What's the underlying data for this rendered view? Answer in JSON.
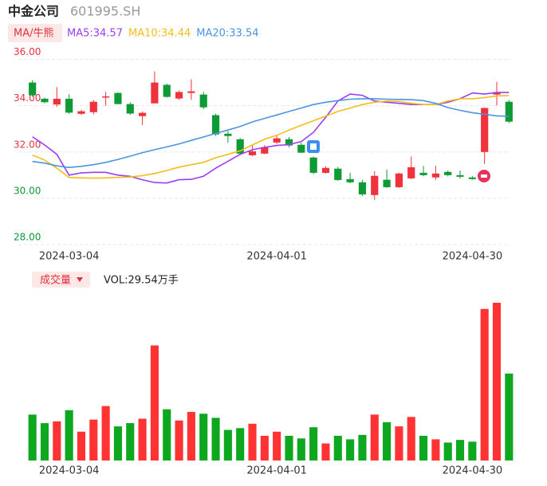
{
  "header": {
    "name": "中金公司",
    "code": "601995.SH"
  },
  "chart_data": [
    {
      "type": "candlestick",
      "legend_title": "MA/牛熊",
      "categories": [
        null,
        null,
        null,
        "2024-03-04",
        null,
        null,
        null,
        null,
        null,
        null,
        null,
        null,
        null,
        null,
        null,
        null,
        null,
        null,
        null,
        null,
        "2024-04-01",
        null,
        null,
        null,
        null,
        null,
        null,
        null,
        null,
        null,
        null,
        null,
        null,
        null,
        null,
        null,
        "2024-04-30",
        null,
        null,
        null
      ],
      "open": [
        35.0,
        34.3,
        34.05,
        34.3,
        33.65,
        33.72,
        34.35,
        34.55,
        34.07,
        33.55,
        34.1,
        34.9,
        34.31,
        34.55,
        34.48,
        33.59,
        32.79,
        32.55,
        31.86,
        31.93,
        32.41,
        32.55,
        32.31,
        31.76,
        31.1,
        31.28,
        30.83,
        30.69,
        30.14,
        30.8,
        30.48,
        30.86,
        31.1,
        30.9,
        31.14,
        31.0,
        30.9,
        32.0,
        34.48,
        34.17
      ],
      "close": [
        34.45,
        34.15,
        34.3,
        33.7,
        33.76,
        34.17,
        34.4,
        34.07,
        33.66,
        33.69,
        35.0,
        34.38,
        34.59,
        34.62,
        33.93,
        32.76,
        32.69,
        31.93,
        32.03,
        32.21,
        32.59,
        32.28,
        31.97,
        31.1,
        31.31,
        30.79,
        30.69,
        30.17,
        30.97,
        30.48,
        31.07,
        31.34,
        31.0,
        31.07,
        31.0,
        30.93,
        30.83,
        33.9,
        34.59,
        33.31
      ],
      "high": [
        35.1,
        34.35,
        34.8,
        34.5,
        33.82,
        34.25,
        34.6,
        34.58,
        34.15,
        33.75,
        35.48,
        34.95,
        34.65,
        35.14,
        34.6,
        33.65,
        32.9,
        32.6,
        32.3,
        32.3,
        32.7,
        32.65,
        32.4,
        31.8,
        31.38,
        31.35,
        31.1,
        30.8,
        31.17,
        31.24,
        31.1,
        31.8,
        31.4,
        31.4,
        31.2,
        31.2,
        30.95,
        33.92,
        35.03,
        34.25
      ],
      "low": [
        34.38,
        34.1,
        33.95,
        33.65,
        33.6,
        33.62,
        34.0,
        34.05,
        33.6,
        33.17,
        34.1,
        34.35,
        34.25,
        34.25,
        33.85,
        32.7,
        32.4,
        31.9,
        31.82,
        31.9,
        32.35,
        32.2,
        31.95,
        31.05,
        31.07,
        30.75,
        30.65,
        30.1,
        29.93,
        30.45,
        30.45,
        30.83,
        30.95,
        30.8,
        30.95,
        30.85,
        30.8,
        31.48,
        34.0,
        33.25
      ],
      "up_color": "#f0323c",
      "down_color": "#0e9b35",
      "series": [
        {
          "name": "MA5:34.57",
          "color": "#9b3df2",
          "values": [
            32.66,
            32.3,
            31.9,
            31.0,
            31.1,
            31.12,
            31.12,
            31.0,
            30.95,
            30.8,
            30.68,
            30.66,
            30.8,
            30.82,
            30.95,
            31.3,
            31.6,
            31.9,
            32.1,
            32.2,
            32.28,
            32.32,
            32.45,
            32.85,
            33.5,
            34.2,
            34.5,
            34.45,
            34.2,
            34.15,
            34.1,
            34.05,
            34.05,
            34.05,
            34.15,
            34.3,
            34.55,
            34.5,
            34.57,
            34.57
          ]
        },
        {
          "name": "MA10:34.44",
          "color": "#f5bd1a",
          "values": [
            31.86,
            31.65,
            31.3,
            30.9,
            30.88,
            30.87,
            30.88,
            30.9,
            30.92,
            30.98,
            31.07,
            31.2,
            31.35,
            31.45,
            31.55,
            31.75,
            31.9,
            32.05,
            32.3,
            32.55,
            32.72,
            32.95,
            33.15,
            33.35,
            33.55,
            33.75,
            33.9,
            34.05,
            34.15,
            34.2,
            34.18,
            34.1,
            34.05,
            34.05,
            34.2,
            34.3,
            34.3,
            34.35,
            34.42,
            34.44
          ]
        },
        {
          "name": "MA20:33.54",
          "color": "#4a94e0",
          "values": [
            31.59,
            31.52,
            31.4,
            31.33,
            31.38,
            31.45,
            31.55,
            31.68,
            31.82,
            31.97,
            32.1,
            32.22,
            32.35,
            32.5,
            32.65,
            32.8,
            32.95,
            33.1,
            33.3,
            33.45,
            33.6,
            33.75,
            33.9,
            34.05,
            34.15,
            34.22,
            34.28,
            34.3,
            34.3,
            34.28,
            34.27,
            34.26,
            34.22,
            34.1,
            33.92,
            33.8,
            33.7,
            33.63,
            33.56,
            33.54
          ]
        }
      ],
      "ylim": [
        28,
        36.5
      ],
      "yticks": [
        {
          "value": 36,
          "label": "36.00"
        },
        {
          "value": 34,
          "label": "34.00"
        },
        {
          "value": 32,
          "label": "32.00"
        },
        {
          "value": 30,
          "label": "30.00"
        },
        {
          "value": 28,
          "label": "28.00"
        }
      ],
      "ytick_colors": [
        "#e8323c",
        "#e8323c",
        "#e8323c",
        "#0e9b35",
        "#0e9b35"
      ],
      "grid": true
    },
    {
      "type": "bar",
      "indicator": "成交量",
      "label": "VOL:29.54万手",
      "values": [
        15.6,
        12.7,
        13.3,
        17.1,
        9.8,
        13.9,
        18.5,
        11.6,
        12.7,
        14.2,
        39.1,
        17.4,
        13.6,
        16.5,
        15.9,
        14.5,
        10.4,
        11.0,
        12.5,
        8.4,
        9.8,
        8.4,
        7.5,
        11.3,
        5.8,
        8.4,
        7.2,
        8.7,
        15.6,
        13.0,
        11.6,
        14.8,
        8.4,
        7.2,
        6.1,
        7.0,
        6.4,
        51.5,
        53.6,
        29.54
      ],
      "up_color": "#ff3333",
      "down_color": "#0da820"
    }
  ]
}
